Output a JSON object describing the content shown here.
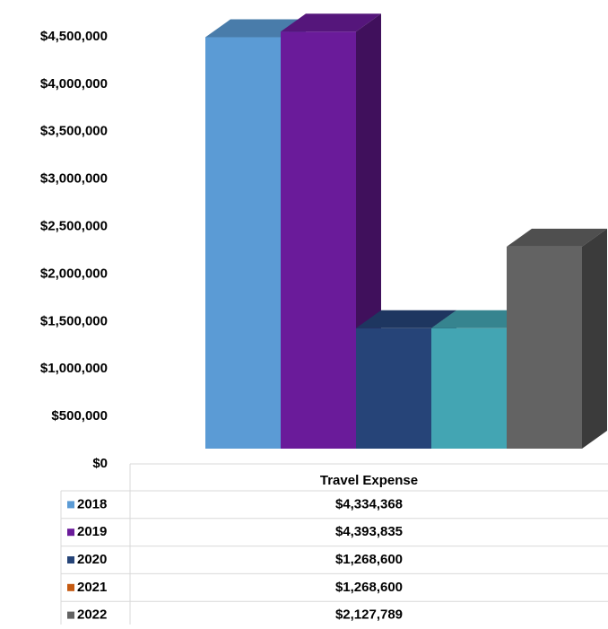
{
  "chart_data": {
    "type": "bar3d",
    "categories": [
      "Travel Expense"
    ],
    "series": [
      {
        "name": "2018",
        "color": "#5b9bd5",
        "values": [
          4334368
        ],
        "value_labels": [
          "$4,334,368"
        ]
      },
      {
        "name": "2019",
        "color": "#6a1b9a",
        "values": [
          4393835
        ],
        "value_labels": [
          "$4,393,835"
        ]
      },
      {
        "name": "2020",
        "color": "#264478",
        "values": [
          1268600
        ],
        "value_labels": [
          "$1,268,600"
        ]
      },
      {
        "name": "2021",
        "color": "#43a5b3",
        "legend_color": "#c55a11",
        "values": [
          1268600
        ],
        "value_labels": [
          "$1,268,600"
        ]
      },
      {
        "name": "2022",
        "color": "#636363",
        "values": [
          2127789
        ],
        "value_labels": [
          "$2,127,789"
        ]
      }
    ],
    "ylim": [
      0,
      4500000
    ],
    "yticks": [
      {
        "value": 0,
        "label": "$0"
      },
      {
        "value": 500000,
        "label": "$500,000"
      },
      {
        "value": 1000000,
        "label": "$1,000,000"
      },
      {
        "value": 1500000,
        "label": "$1,500,000"
      },
      {
        "value": 2000000,
        "label": "$2,000,000"
      },
      {
        "value": 2500000,
        "label": "$2,500,000"
      },
      {
        "value": 3000000,
        "label": "$3,000,000"
      },
      {
        "value": 3500000,
        "label": "$3,500,000"
      },
      {
        "value": 4000000,
        "label": "$4,000,000"
      },
      {
        "value": 4500000,
        "label": "$4,500,000"
      }
    ],
    "grid": false
  }
}
